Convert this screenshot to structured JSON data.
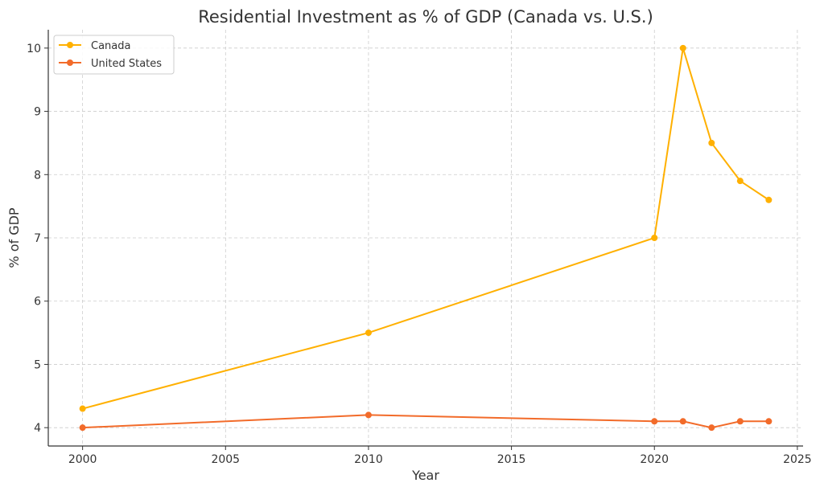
{
  "chart_data": {
    "type": "line",
    "title": "Residential Investment as % of GDP (Canada vs. U.S.)",
    "xlabel": "Year",
    "ylabel": "% of GDP",
    "xlim": [
      1998.8,
      2025.2
    ],
    "ylim": [
      3.71,
      10.29
    ],
    "xticks": [
      2000,
      2005,
      2010,
      2015,
      2020,
      2025
    ],
    "yticks": [
      4,
      5,
      6,
      7,
      8,
      9,
      10
    ],
    "grid": true,
    "legend_position": "top-left",
    "x": [
      2000,
      2010,
      2020,
      2021,
      2022,
      2023,
      2024
    ],
    "series": [
      {
        "name": "Canada",
        "color": "#FFB000",
        "values": [
          4.3,
          5.5,
          7.0,
          10.0,
          8.5,
          7.9,
          7.6
        ]
      },
      {
        "name": "United States",
        "color": "#F26B2A",
        "values": [
          4.0,
          4.2,
          4.1,
          4.1,
          4.0,
          4.1,
          4.1
        ]
      }
    ]
  }
}
